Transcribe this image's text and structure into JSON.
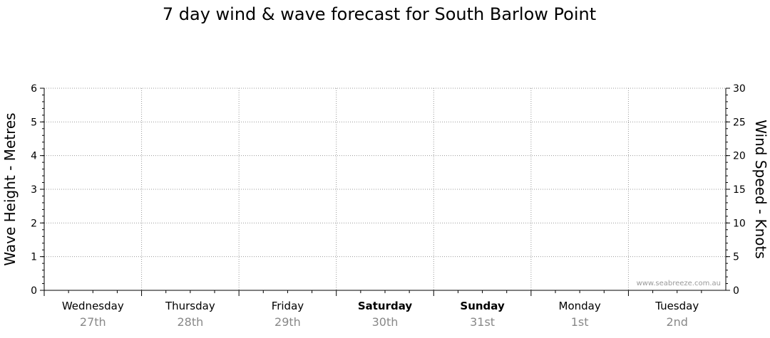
{
  "chart_data": {
    "type": "line",
    "title": "7 day wind & wave forecast for South Barlow Point",
    "y_left_label": "Wave Height - Metres",
    "y_right_label": "Wind Speed - Knots",
    "y_left_range": [
      0,
      6
    ],
    "y_left_ticks": [
      "0",
      "1",
      "2",
      "3",
      "4",
      "5",
      "6"
    ],
    "y_right_range": [
      0,
      30
    ],
    "y_right_ticks": [
      "0",
      "5",
      "10",
      "15",
      "20",
      "25",
      "30"
    ],
    "days": [
      {
        "name": "Wednesday",
        "date": "27th",
        "weekend": false
      },
      {
        "name": "Thursday",
        "date": "28th",
        "weekend": false
      },
      {
        "name": "Friday",
        "date": "29th",
        "weekend": false
      },
      {
        "name": "Saturday",
        "date": "30th",
        "weekend": true
      },
      {
        "name": "Sunday",
        "date": "31st",
        "weekend": true
      },
      {
        "name": "Monday",
        "date": "1st",
        "weekend": false
      },
      {
        "name": "Tuesday",
        "date": "2nd",
        "weekend": false
      }
    ],
    "series": [],
    "grid": true,
    "watermark": "www.seabreeze.com.au"
  }
}
